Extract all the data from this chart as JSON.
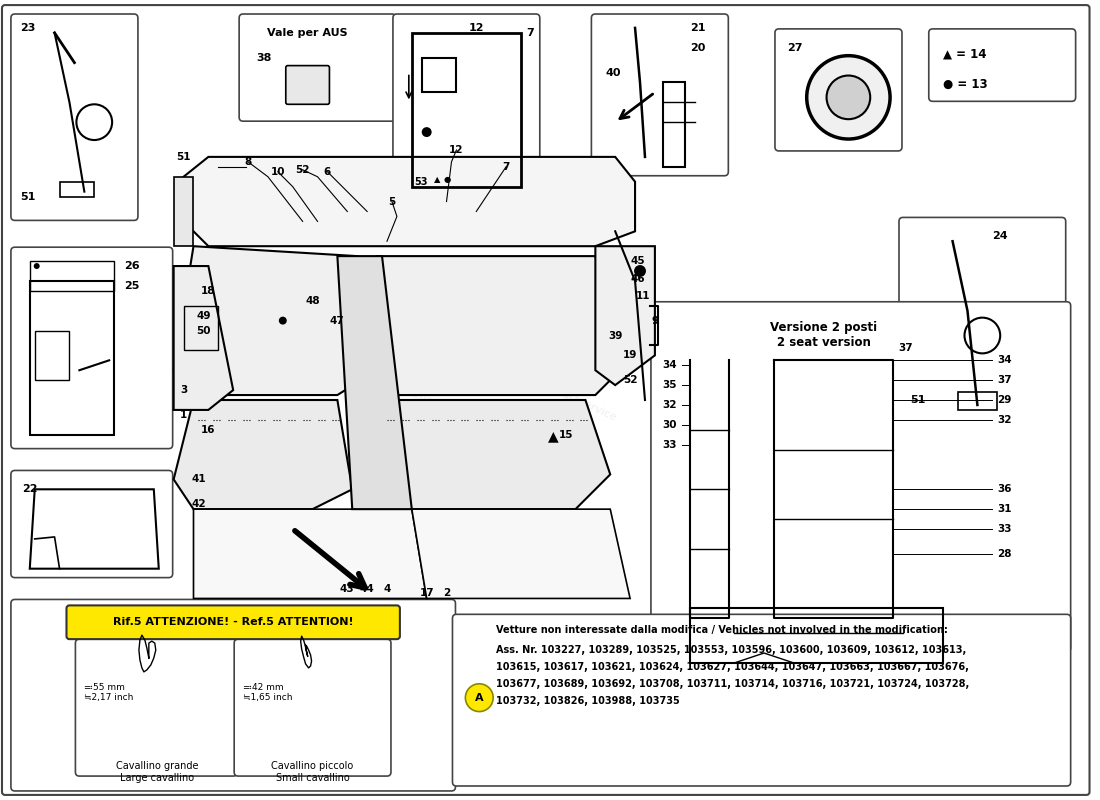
{
  "bg_color": "#ffffff",
  "fig_width": 11.0,
  "fig_height": 8.0,
  "legend_triangle_label": "▲ = 14",
  "legend_circle_label": "● = 13",
  "versione_label": "Versione 2 posti\n2 seat version",
  "attention_text": "Rif.5 ATTENZIONE! - Ref.5 ATTENTION!",
  "cavallino_grande_text": "Cavallino grande\nLarge cavallino",
  "cavallino_grande_size": "≕55 mm\n≒2,17 inch",
  "cavallino_piccolo_text": "Cavallino piccolo\nSmall cavallino",
  "cavallino_piccolo_size": "≕42 mm\n≒1,65 inch",
  "vehicles_header": "Vetture non interessate dalla modifica / Vehicles not involved in the modification:",
  "vehicles_line1": "Ass. Nr. 103227, 103289, 103525, 103553, 103596, 103600, 103609, 103612, 103613,",
  "vehicles_line2": "103615, 103617, 103621, 103624, 103627, 103644, 103647, 103663, 103667, 103676,",
  "vehicles_line3": "103677, 103689, 103692, 103708, 103711, 103714, 103716, 103721, 103724, 103728,",
  "vehicles_line4": "103732, 103826, 103988, 103735",
  "vale_per_aus": "Vale per AUS",
  "attention_bg": "#FFE800",
  "circle_a_color": "#FFE800",
  "gray_watermark": "#c8c8c8",
  "watermark_alpha": 0.3
}
